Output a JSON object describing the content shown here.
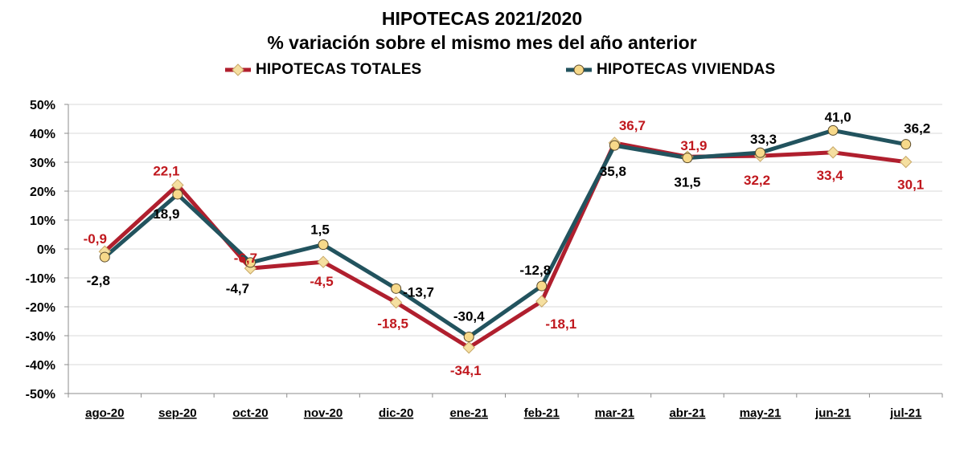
{
  "chart_data": {
    "type": "line",
    "title": "HIPOTECAS 2021/2020",
    "subtitle": "% variación sobre el mismo mes del año anterior",
    "categories": [
      "ago-20",
      "sep-20",
      "oct-20",
      "nov-20",
      "dic-20",
      "ene-21",
      "feb-21",
      "mar-21",
      "abr-21",
      "may-21",
      "jun-21",
      "jul-21"
    ],
    "series": [
      {
        "name": "HIPOTECAS TOTALES",
        "color": "#B01F2E",
        "marker": "diamond",
        "marker_color": "#F5DFA0",
        "label_color": "#C0181E",
        "values": [
          -0.9,
          22.1,
          -6.7,
          -4.5,
          -18.5,
          -34.1,
          -18.1,
          36.7,
          31.9,
          32.2,
          33.4,
          30.1
        ],
        "labels": [
          "-0,9",
          "22,1",
          "-6,7",
          "-4,5",
          "-18,5",
          "-34,1",
          "-18,1",
          "36,7",
          "31,9",
          "32,2",
          "33,4",
          "30,1"
        ]
      },
      {
        "name": "HIPOTECAS VIVIENDAS",
        "color": "#22535E",
        "marker": "circle",
        "marker_color": "#F7D98A",
        "label_color": "#000000",
        "values": [
          -2.8,
          18.9,
          -4.7,
          1.5,
          -13.7,
          -30.4,
          -12.8,
          35.8,
          31.5,
          33.3,
          41.0,
          36.2
        ],
        "labels": [
          "-2,8",
          "18,9",
          "-4,7",
          "1,5",
          "-13,7",
          "-30,4",
          "-12,8",
          "35,8",
          "31,5",
          "33,3",
          "41,0",
          "36,2"
        ]
      }
    ],
    "ylim": [
      -50,
      50
    ],
    "yticks": [
      "-50%",
      "-40%",
      "-30%",
      "-20%",
      "-10%",
      "0%",
      "10%",
      "20%",
      "30%",
      "40%",
      "50%"
    ],
    "xlabel": "",
    "ylabel": "",
    "grid": true,
    "legend_position": "top"
  }
}
